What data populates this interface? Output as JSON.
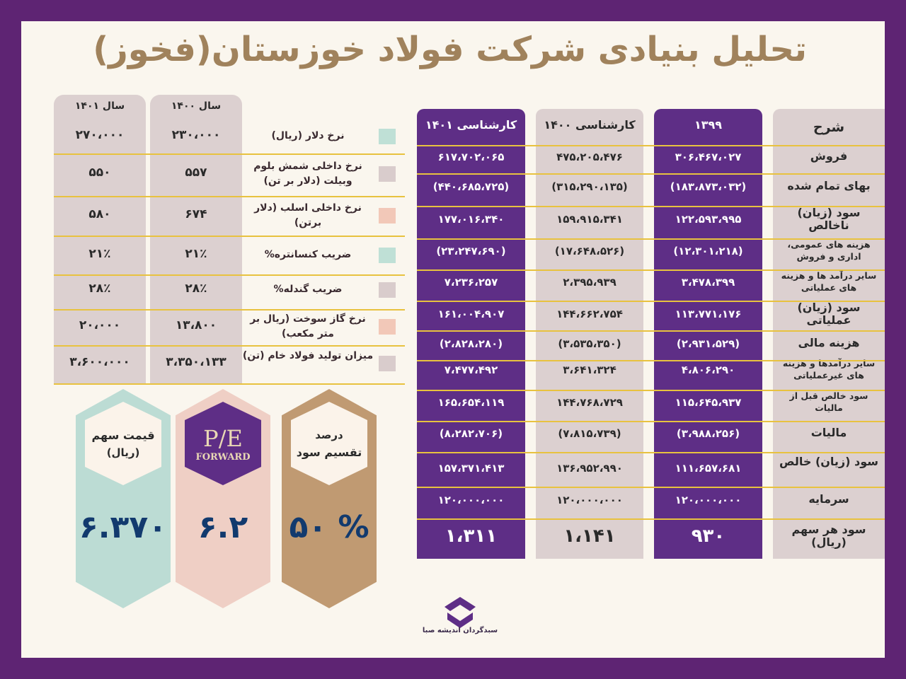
{
  "title": "تحلیل بنیادی  شرکت فولاد خوزستان(فخوز)",
  "colors": {
    "frame": "#5e2473",
    "purple": "#5e2e86",
    "grey": "#dcd0d0",
    "gold": "#e8c23f",
    "title": "#a0825c",
    "value_blue": "#123a6e"
  },
  "financial": {
    "headers": {
      "desc": "شرح",
      "y1399": "۱۳۹۹",
      "y1400": "کارشناسی ۱۴۰۰",
      "y1401": "کارشناسی ۱۴۰۱"
    },
    "rows": [
      {
        "label": "فروش",
        "y1399": "۳۰۶،۴۶۷،۰۲۷",
        "y1400": "۴۷۵،۲۰۵،۴۷۶",
        "y1401": "۶۱۷،۷۰۲،۰۶۵"
      },
      {
        "label": "بهای تمام شده",
        "y1399": "(۱۸۳،۸۷۳،۰۳۲)",
        "y1400": "(۳۱۵،۲۹۰،۱۳۵)",
        "y1401": "(۴۴۰،۶۸۵،۷۲۵)"
      },
      {
        "label": "سود (زیان) ناخالص",
        "y1399": "۱۲۲،۵۹۳،۹۹۵",
        "y1400": "۱۵۹،۹۱۵،۳۴۱",
        "y1401": "۱۷۷،۰۱۶،۳۴۰"
      },
      {
        "label": "هزینه های عمومی، اداری و فروش",
        "y1399": "(۱۲،۳۰۱،۲۱۸)",
        "y1400": "(۱۷،۶۴۸،۵۲۶)",
        "y1401": "(۲۳،۲۴۷،۶۹۰)"
      },
      {
        "label": "سایر درآمد ها و هزینه های عملیاتی",
        "y1399": "۳،۴۷۸،۳۹۹",
        "y1400": "۲،۳۹۵،۹۳۹",
        "y1401": "۷،۲۳۶،۲۵۷"
      },
      {
        "label": "سود (زیان) عملیاتی",
        "y1399": "۱۱۳،۷۷۱،۱۷۶",
        "y1400": "۱۴۴،۶۶۲،۷۵۴",
        "y1401": "۱۶۱،۰۰۴،۹۰۷"
      },
      {
        "label": "هزینه مالی",
        "y1399": "(۲،۹۳۱،۵۲۹)",
        "y1400": "(۳،۵۳۵،۳۵۰)",
        "y1401": "(۲،۸۲۸،۲۸۰)"
      },
      {
        "label": "سایر درآمدها و هزینه های غیرعملیاتی",
        "y1399": "۴،۸۰۶،۲۹۰",
        "y1400": "۳،۶۴۱،۳۲۴",
        "y1401": "۷،۴۷۷،۴۹۲"
      },
      {
        "label": "سود خالص قبل از مالیات",
        "y1399": "۱۱۵،۶۴۵،۹۳۷",
        "y1400": "۱۴۴،۷۶۸،۷۲۹",
        "y1401": "۱۶۵،۶۵۴،۱۱۹"
      },
      {
        "label": "مالیات",
        "y1399": "(۳،۹۸۸،۲۵۶)",
        "y1400": "(۷،۸۱۵،۷۳۹)",
        "y1401": "(۸،۲۸۲،۷۰۶)"
      },
      {
        "label": "سود (زیان) خالص",
        "y1399": "۱۱۱،۶۵۷،۶۸۱",
        "y1400": "۱۳۶،۹۵۲،۹۹۰",
        "y1401": "۱۵۷،۳۷۱،۴۱۳"
      },
      {
        "label": "سرمایه",
        "y1399": "۱۲۰،۰۰۰،۰۰۰",
        "y1400": "۱۲۰،۰۰۰،۰۰۰",
        "y1401": "۱۲۰،۰۰۰،۰۰۰"
      },
      {
        "label": "سود هر سهم (ریال)",
        "y1399": "۹۳۰",
        "y1400": "۱،۱۴۱",
        "y1401": "۱،۳۱۱"
      }
    ]
  },
  "assumptions": {
    "headers": {
      "y1400": "سال ۱۴۰۰",
      "y1401": "سال ۱۴۰۱"
    },
    "rows": [
      {
        "label": "نرخ دلار (ریال)",
        "y1400": "۲۳۰،۰۰۰",
        "y1401": "۲۷۰،۰۰۰",
        "color": "#bfe0d6"
      },
      {
        "label": "نرخ داخلی شمش بلوم وبیلت (دلار بر تن)",
        "y1400": "۵۵۷",
        "y1401": "۵۵۰",
        "color": "#d9cccc"
      },
      {
        "label": "نرخ داخلی اسلب (دلار برتن)",
        "y1400": "۶۷۴",
        "y1401": "۵۸۰",
        "color": "#f2c8b8"
      },
      {
        "label": "ضریب کنسانتره%",
        "y1400": "۲۱٪",
        "y1401": "۲۱٪",
        "color": "#bfe0d6"
      },
      {
        "label": "ضریب گندله%",
        "y1400": "۲۸٪",
        "y1401": "۲۸٪",
        "color": "#d9cccc"
      },
      {
        "label": "نرخ گاز سوخت (ریال بر متر مکعب)",
        "y1400": "۱۳،۸۰۰",
        "y1401": "۲۰،۰۰۰",
        "color": "#f2c8b8"
      },
      {
        "label": "میزان تولید فولاد خام (تن)",
        "y1400": "۳،۳۵۰،۱۳۳",
        "y1401": "۳،۶۰۰،۰۰۰",
        "color": "#d9cccc"
      }
    ]
  },
  "cards": {
    "price": {
      "line1": "قیمت سهم",
      "line2": "(ریال)",
      "value": "۶.۳۷۰"
    },
    "pe": {
      "line1": "P/E",
      "line2": "FORWARD",
      "value": "۶.۲"
    },
    "dividend": {
      "line1": "درصد",
      "line2": "تقسیم سود",
      "value": "۵۰ %"
    }
  },
  "logo": {
    "text": "سبدگردان اندیشه صبا",
    "icon": "saba-logo-icon"
  }
}
